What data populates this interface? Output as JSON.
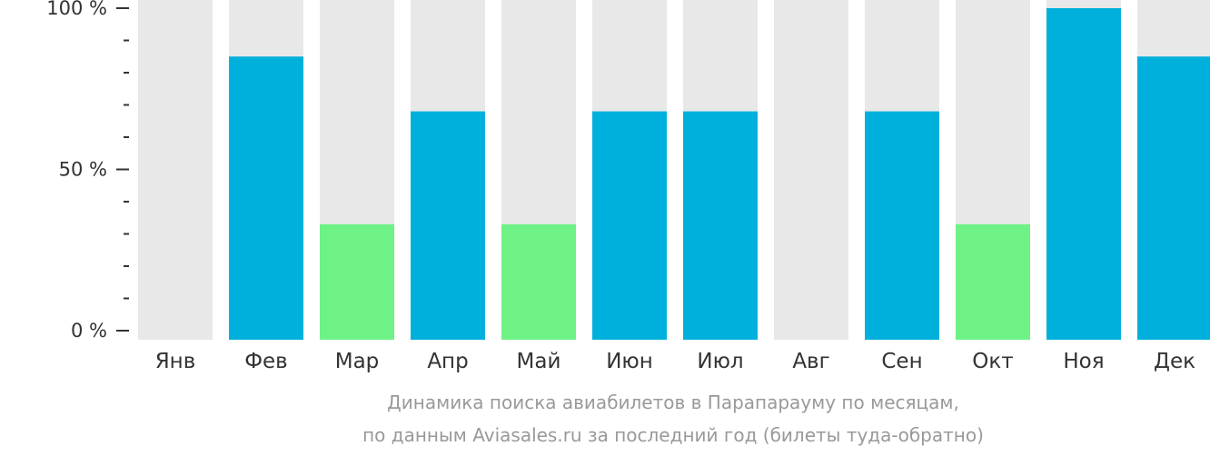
{
  "chart_data": {
    "type": "bar",
    "title": "",
    "xlabel": "",
    "ylabel": "",
    "ylim": [
      0,
      100
    ],
    "y_ticks": [
      {
        "value": 0,
        "label": "0 %"
      },
      {
        "value": 50,
        "label": "50 %"
      },
      {
        "value": 100,
        "label": "100 %"
      }
    ],
    "y_minor_tick_step": 10,
    "categories": [
      "Янв",
      "Фев",
      "Мар",
      "Апр",
      "Май",
      "Июн",
      "Июл",
      "Авг",
      "Сен",
      "Окт",
      "Ноя",
      "Дек"
    ],
    "values": [
      0,
      85,
      33,
      68,
      33,
      68,
      68,
      0,
      68,
      33,
      100,
      85
    ],
    "bar_level_colors": [
      "#00b0dc",
      "#00b0dc",
      "#6ef286",
      "#00b0dc",
      "#6ef286",
      "#00b0dc",
      "#00b0dc",
      "#00b0dc",
      "#00b0dc",
      "#6ef286",
      "#00b0dc",
      "#00b0dc"
    ],
    "background_bar_color": "#e8e8e8",
    "grid": false,
    "legend": "none"
  },
  "caption": {
    "line1": "Динамика поиска авиабилетов в Парапарауму по месяцам,",
    "line2": "по данным Aviasales.ru за последний год (билеты туда-обратно)"
  }
}
